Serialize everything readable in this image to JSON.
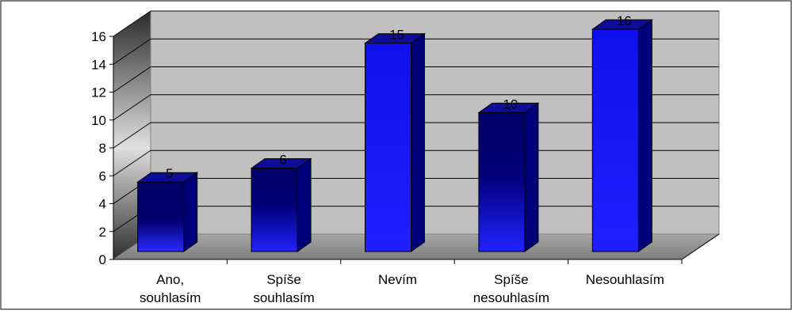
{
  "chart_data": {
    "type": "bar",
    "style": "3d-column",
    "title": "",
    "xlabel": "",
    "ylabel": "",
    "categories": [
      [
        "Ano,",
        "souhlasím"
      ],
      [
        "Spíše",
        "souhlasím"
      ],
      [
        "Nevím"
      ],
      [
        "Spíše",
        "nesouhlasím"
      ],
      [
        "Nesouhlasím"
      ]
    ],
    "values": [
      5,
      6,
      15,
      10,
      16
    ],
    "data_labels": [
      "5",
      "6",
      "15",
      "10",
      "16"
    ],
    "ylim": [
      0,
      16
    ],
    "yticks": [
      "0",
      "2",
      "4",
      "6",
      "8",
      "10",
      "12",
      "14",
      "16"
    ],
    "grid": true,
    "legend": "none",
    "colors": {
      "bar_dark": "#000066",
      "bar_bright": "#1a1aff",
      "bar_side": "#00007a",
      "bar_top": "#0d0d99",
      "back_wall": "#c0c0c0",
      "side_wall_light": "#d8d8d8",
      "side_wall_dark": "#3a3a3a",
      "floor": "#8c8c8c"
    }
  }
}
